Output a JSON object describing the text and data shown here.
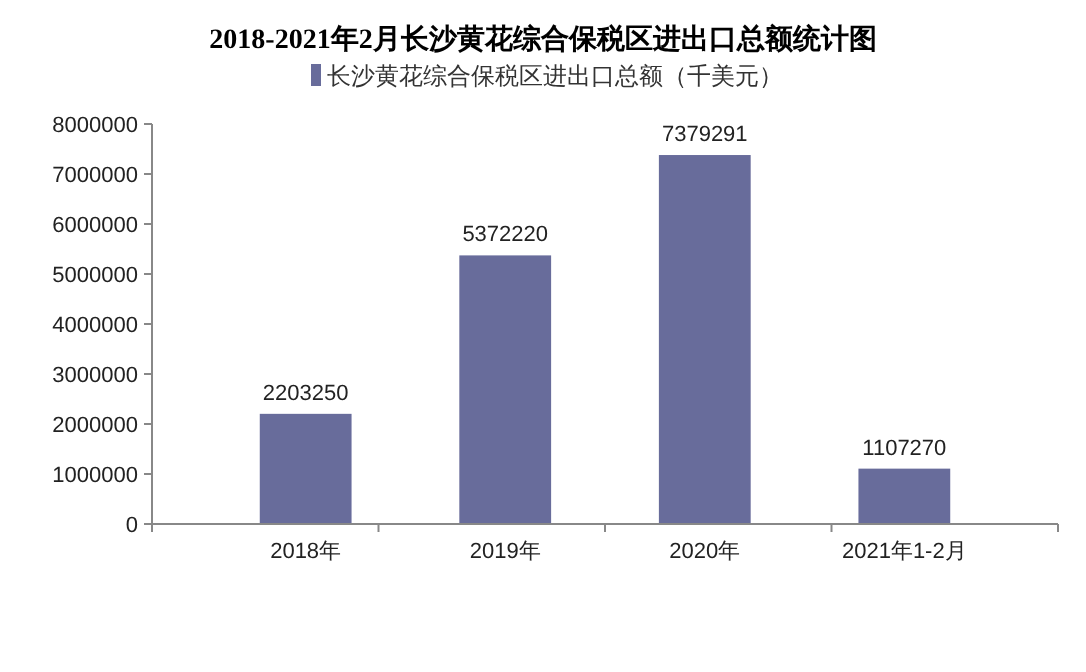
{
  "chart_data": {
    "type": "bar",
    "title": "2018-2021年2月长沙黄花综合保税区进出口总额统计图",
    "categories": [
      "2018年",
      "2019年",
      "2020年",
      "2021年1-2月"
    ],
    "series": [
      {
        "name": "长沙黄花综合保税区进出口总额（千美元）",
        "color": "#686c9b",
        "values": [
          2203250,
          5372220,
          7379291,
          1107270
        ]
      }
    ],
    "ylim": [
      0,
      8000000
    ],
    "yticks": [
      0,
      1000000,
      2000000,
      3000000,
      4000000,
      5000000,
      6000000,
      7000000,
      8000000
    ],
    "data_labels": true,
    "legend": "top",
    "grid": false
  }
}
